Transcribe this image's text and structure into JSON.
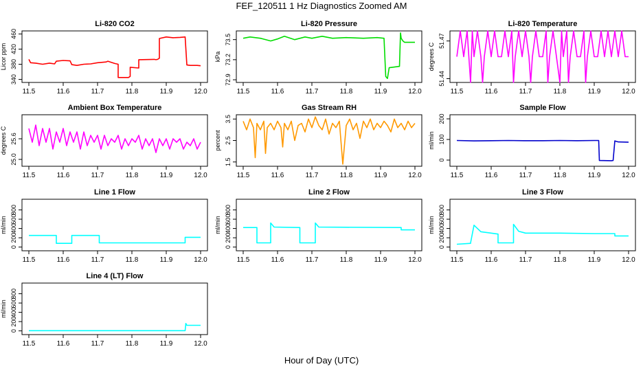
{
  "figure": {
    "title": "FEF_120511  1 Hz Diagnostics Zoomed AM",
    "xlabel": "Hour of Day (UTC)"
  },
  "chart_data": [
    {
      "type": "line",
      "title": "Li-820 CO2",
      "ylabel": "Licor ppm",
      "color": "#ff0000",
      "xlim": [
        11.48,
        12.02
      ],
      "ylim": [
        332,
        468
      ],
      "xticks": [
        11.5,
        11.6,
        11.7,
        11.8,
        11.9,
        12.0
      ],
      "xtick_labels": [
        "11.5",
        "11.6",
        "11.7",
        "11.8",
        "11.9",
        "12.0"
      ],
      "yticks": [
        340,
        380,
        420,
        460
      ],
      "ytick_labels": [
        "340",
        "380",
        "420",
        "460"
      ],
      "series": [
        {
          "x": [
            11.5,
            11.505,
            11.52,
            11.54,
            11.56,
            11.575,
            11.58,
            11.6,
            11.62,
            11.625,
            11.64,
            11.66,
            11.68,
            11.7,
            11.725,
            11.73,
            11.75,
            11.76,
            11.76,
            11.79,
            11.795,
            11.795,
            11.82,
            11.82,
            11.865,
            11.87,
            11.875,
            11.88,
            11.88,
            11.9,
            11.92,
            11.94,
            11.955,
            11.96,
            11.97,
            11.99,
            12.0
          ],
          "y": [
            393,
            384,
            383,
            380,
            383,
            381,
            388,
            390,
            389,
            379,
            377,
            380,
            381,
            384,
            386,
            388,
            382,
            380,
            345,
            345,
            348,
            372,
            370,
            392,
            393,
            392,
            393,
            396,
            448,
            452,
            450,
            451,
            452,
            378,
            377,
            377,
            376
          ]
        }
      ]
    },
    {
      "type": "line",
      "title": "Li-820 Pressure",
      "ylabel": "kPa",
      "color": "#00dd00",
      "xlim": [
        11.48,
        12.02
      ],
      "ylim": [
        72.86,
        73.63
      ],
      "xticks": [
        11.5,
        11.6,
        11.7,
        11.8,
        11.9,
        12.0
      ],
      "xtick_labels": [
        "11.5",
        "11.6",
        "11.7",
        "11.8",
        "11.9",
        "12.0"
      ],
      "yticks": [
        72.9,
        73.2,
        73.5
      ],
      "ytick_labels": [
        "72.9",
        "73.2",
        "73.5"
      ],
      "series": [
        {
          "x": [
            11.5,
            11.52,
            11.55,
            11.58,
            11.6,
            11.62,
            11.65,
            11.68,
            11.7,
            11.73,
            11.76,
            11.8,
            11.85,
            11.89,
            11.91,
            11.915,
            11.92,
            11.925,
            11.94,
            11.955,
            11.958,
            11.96,
            11.965,
            11.97,
            11.99,
            12.0
          ],
          "y": [
            73.52,
            73.54,
            73.52,
            73.48,
            73.51,
            73.55,
            73.5,
            73.54,
            73.52,
            73.55,
            73.52,
            73.53,
            73.52,
            73.53,
            73.52,
            72.95,
            72.92,
            73.08,
            73.09,
            73.1,
            73.6,
            73.52,
            73.48,
            73.46,
            73.46,
            73.46
          ]
        }
      ]
    },
    {
      "type": "line",
      "title": "Li-820 Temperature",
      "ylabel": "degrees C",
      "color": "#ff00ff",
      "xlim": [
        11.48,
        12.02
      ],
      "ylim": [
        51.437,
        51.478
      ],
      "xticks": [
        11.5,
        11.6,
        11.7,
        11.8,
        11.9,
        12.0
      ],
      "xtick_labels": [
        "11.5",
        "11.6",
        "11.7",
        "11.8",
        "11.9",
        "12.0"
      ],
      "yticks": [
        51.44,
        51.47
      ],
      "ytick_labels": [
        "51.44",
        "51.47"
      ],
      "series": [
        {
          "x": [
            11.5,
            11.51,
            11.52,
            11.53,
            11.535,
            11.54,
            11.545,
            11.55,
            11.56,
            11.57,
            11.575,
            11.58,
            11.59,
            11.6,
            11.61,
            11.62,
            11.63,
            11.64,
            11.65,
            11.66,
            11.665,
            11.67,
            11.68,
            11.69,
            11.7,
            11.71,
            11.715,
            11.72,
            11.73,
            11.74,
            11.75,
            11.76,
            11.765,
            11.77,
            11.78,
            11.79,
            11.8,
            11.805,
            11.81,
            11.82,
            11.825,
            11.83,
            11.84,
            11.85,
            11.86,
            11.87,
            11.875,
            11.88,
            11.89,
            11.9,
            11.91,
            11.92,
            11.93,
            11.94,
            11.95,
            11.96,
            11.97,
            11.98,
            11.99,
            12.0
          ],
          "y": [
            51.4575,
            51.478,
            51.4575,
            51.478,
            51.4575,
            51.437,
            51.478,
            51.4575,
            51.478,
            51.4575,
            51.437,
            51.4575,
            51.478,
            51.4575,
            51.478,
            51.4575,
            51.4575,
            51.478,
            51.4575,
            51.478,
            51.437,
            51.4575,
            51.478,
            51.4575,
            51.478,
            51.4575,
            51.437,
            51.4575,
            51.478,
            51.4575,
            51.4575,
            51.478,
            51.437,
            51.4575,
            51.478,
            51.4575,
            51.437,
            51.478,
            51.4575,
            51.478,
            51.437,
            51.4575,
            51.478,
            51.4575,
            51.4575,
            51.478,
            51.437,
            51.4575,
            51.478,
            51.4575,
            51.4575,
            51.478,
            51.4575,
            51.478,
            51.4575,
            51.478,
            51.4575,
            51.478,
            51.4575,
            51.4575
          ]
        }
      ]
    },
    {
      "type": "line",
      "title": "Ambient Box Temperature",
      "ylabel": "degrees C",
      "color": "#ff00ff",
      "xlim": [
        11.48,
        12.02
      ],
      "ylim": [
        24.8,
        26.3
      ],
      "xticks": [
        11.5,
        11.6,
        11.7,
        11.8,
        11.9,
        12.0
      ],
      "xtick_labels": [
        "11.5",
        "11.6",
        "11.7",
        "11.8",
        "11.9",
        "12.0"
      ],
      "yticks": [
        25.0,
        25.6
      ],
      "ytick_labels": [
        "25.0",
        "25.6"
      ],
      "series": [
        {
          "x": [
            11.5,
            11.51,
            11.52,
            11.53,
            11.54,
            11.55,
            11.56,
            11.57,
            11.58,
            11.59,
            11.6,
            11.61,
            11.62,
            11.63,
            11.64,
            11.65,
            11.66,
            11.67,
            11.68,
            11.69,
            11.7,
            11.71,
            11.72,
            11.73,
            11.74,
            11.75,
            11.76,
            11.77,
            11.78,
            11.79,
            11.8,
            11.81,
            11.82,
            11.83,
            11.84,
            11.85,
            11.86,
            11.87,
            11.88,
            11.89,
            11.9,
            11.91,
            11.92,
            11.93,
            11.94,
            11.95,
            11.96,
            11.97,
            11.98,
            11.99,
            12.0
          ],
          "y": [
            25.9,
            25.5,
            26.0,
            25.4,
            25.9,
            25.5,
            25.9,
            25.3,
            25.8,
            25.5,
            25.9,
            25.4,
            25.8,
            25.5,
            25.8,
            25.3,
            25.8,
            25.4,
            25.7,
            25.5,
            25.7,
            25.3,
            25.7,
            25.4,
            25.6,
            25.5,
            25.7,
            25.3,
            25.6,
            25.4,
            25.6,
            25.5,
            25.7,
            25.3,
            25.6,
            25.4,
            25.6,
            25.2,
            25.6,
            25.4,
            25.6,
            25.3,
            25.6,
            25.5,
            25.6,
            25.3,
            25.5,
            25.4,
            25.6,
            25.3,
            25.5
          ]
        }
      ]
    },
    {
      "type": "line",
      "title": "Gas Stream RH",
      "ylabel": "percent",
      "color": "#ff9900",
      "xlim": [
        11.48,
        12.02
      ],
      "ylim": [
        1.3,
        3.7
      ],
      "xticks": [
        11.5,
        11.6,
        11.7,
        11.8,
        11.9,
        12.0
      ],
      "xtick_labels": [
        "11.5",
        "11.6",
        "11.7",
        "11.8",
        "11.9",
        "12.0"
      ],
      "yticks": [
        1.5,
        2.5,
        3.5
      ],
      "ytick_labels": [
        "1.5",
        "2.5",
        "3.5"
      ],
      "series": [
        {
          "x": [
            11.5,
            11.51,
            11.52,
            11.53,
            11.535,
            11.54,
            11.55,
            11.56,
            11.565,
            11.57,
            11.58,
            11.59,
            11.6,
            11.61,
            11.615,
            11.62,
            11.63,
            11.64,
            11.65,
            11.66,
            11.67,
            11.68,
            11.69,
            11.7,
            11.71,
            11.72,
            11.73,
            11.74,
            11.75,
            11.76,
            11.77,
            11.78,
            11.79,
            11.8,
            11.81,
            11.82,
            11.83,
            11.84,
            11.85,
            11.86,
            11.87,
            11.88,
            11.89,
            11.9,
            11.91,
            11.92,
            11.93,
            11.94,
            11.95,
            11.96,
            11.97,
            11.98,
            11.99,
            12.0
          ],
          "y": [
            3.4,
            3.0,
            3.5,
            3.1,
            1.7,
            3.3,
            3.0,
            3.4,
            1.9,
            3.1,
            3.3,
            3.0,
            3.4,
            3.1,
            2.2,
            3.3,
            3.0,
            3.4,
            2.5,
            3.2,
            3.3,
            2.9,
            3.5,
            3.1,
            3.6,
            3.2,
            3.0,
            3.5,
            2.8,
            3.3,
            3.1,
            3.4,
            1.4,
            3.2,
            3.5,
            3.0,
            3.3,
            2.6,
            3.4,
            3.1,
            3.5,
            3.0,
            3.3,
            3.1,
            3.4,
            3.2,
            2.9,
            3.5,
            3.1,
            3.3,
            3.0,
            3.4,
            3.1,
            3.3
          ]
        }
      ]
    },
    {
      "type": "line",
      "title": "Sample Flow",
      "ylabel": "ml/min",
      "color": "#0000cc",
      "xlim": [
        11.48,
        12.02
      ],
      "ylim": [
        -30,
        220
      ],
      "xticks": [
        11.5,
        11.6,
        11.7,
        11.8,
        11.9,
        12.0
      ],
      "xtick_labels": [
        "11.5",
        "11.6",
        "11.7",
        "11.8",
        "11.9",
        "12.0"
      ],
      "yticks": [
        0,
        100,
        200
      ],
      "ytick_labels": [
        "0",
        "100",
        "200"
      ],
      "series": [
        {
          "x": [
            11.5,
            11.55,
            11.6,
            11.65,
            11.7,
            11.75,
            11.8,
            11.85,
            11.9,
            11.913,
            11.915,
            11.95,
            11.955,
            11.96,
            11.97,
            12.0
          ],
          "y": [
            95,
            93,
            94,
            95,
            94,
            94,
            95,
            94,
            95,
            95,
            -2,
            -3,
            -2,
            93,
            88,
            87
          ]
        }
      ]
    },
    {
      "type": "line",
      "title": "Line 1 Flow",
      "ylabel": "ml/min",
      "color": "#00ffff",
      "xlim": [
        11.48,
        12.02
      ],
      "ylim": [
        -80,
        1030
      ],
      "xticks": [
        11.5,
        11.6,
        11.7,
        11.8,
        11.9,
        12.0
      ],
      "xtick_labels": [
        "11.5",
        "11.6",
        "11.7",
        "11.8",
        "11.9",
        "12.0"
      ],
      "yticks": [
        0,
        200,
        400,
        600,
        800
      ],
      "ytick_labels": [
        "0",
        "200",
        "400",
        "600",
        "800"
      ],
      "series": [
        {
          "x": [
            11.5,
            11.58,
            11.58,
            11.625,
            11.625,
            11.705,
            11.705,
            11.955,
            11.955,
            12.0
          ],
          "y": [
            250,
            250,
            80,
            80,
            250,
            250,
            90,
            90,
            210,
            210
          ]
        }
      ]
    },
    {
      "type": "line",
      "title": "Line 2 Flow",
      "ylabel": "ml/min",
      "color": "#00ffff",
      "xlim": [
        11.48,
        12.02
      ],
      "ylim": [
        -80,
        1030
      ],
      "xticks": [
        11.5,
        11.6,
        11.7,
        11.8,
        11.9,
        12.0
      ],
      "xtick_labels": [
        "11.5",
        "11.6",
        "11.7",
        "11.8",
        "11.9",
        "12.0"
      ],
      "yticks": [
        0,
        200,
        400,
        600,
        800
      ],
      "ytick_labels": [
        "0",
        "200",
        "400",
        "600",
        "800"
      ],
      "series": [
        {
          "x": [
            11.5,
            11.54,
            11.54,
            11.58,
            11.58,
            11.59,
            11.665,
            11.665,
            11.71,
            11.71,
            11.72,
            11.96,
            11.96,
            12.0
          ],
          "y": [
            420,
            420,
            90,
            90,
            520,
            430,
            420,
            90,
            90,
            520,
            430,
            420,
            370,
            370
          ]
        }
      ]
    },
    {
      "type": "line",
      "title": "Line 3 Flow",
      "ylabel": "ml/min",
      "color": "#00ffff",
      "xlim": [
        11.48,
        12.02
      ],
      "ylim": [
        -80,
        1030
      ],
      "xticks": [
        11.5,
        11.6,
        11.7,
        11.8,
        11.9,
        12.0
      ],
      "xtick_labels": [
        "11.5",
        "11.6",
        "11.7",
        "11.8",
        "11.9",
        "12.0"
      ],
      "yticks": [
        0,
        200,
        400,
        600,
        800
      ],
      "ytick_labels": [
        "0",
        "200",
        "400",
        "600",
        "800"
      ],
      "series": [
        {
          "x": [
            11.5,
            11.54,
            11.54,
            11.55,
            11.57,
            11.6,
            11.62,
            11.62,
            11.665,
            11.665,
            11.68,
            11.7,
            11.8,
            11.9,
            11.96,
            11.96,
            12.0
          ],
          "y": [
            60,
            80,
            90,
            470,
            330,
            300,
            280,
            90,
            90,
            490,
            340,
            300,
            300,
            290,
            290,
            240,
            240
          ]
        }
      ]
    },
    {
      "type": "line",
      "title": "Line 4 (LT) Flow",
      "ylabel": "ml/min",
      "color": "#00ffff",
      "xlim": [
        11.48,
        12.02
      ],
      "ylim": [
        -80,
        1030
      ],
      "xticks": [
        11.5,
        11.6,
        11.7,
        11.8,
        11.9,
        12.0
      ],
      "xtick_labels": [
        "11.5",
        "11.6",
        "11.7",
        "11.8",
        "11.9",
        "12.0"
      ],
      "yticks": [
        0,
        200,
        400,
        600,
        800
      ],
      "ytick_labels": [
        "0",
        "200",
        "400",
        "600",
        "800"
      ],
      "series": [
        {
          "x": [
            11.5,
            11.6,
            11.7,
            11.8,
            11.9,
            11.955,
            11.957,
            11.96,
            12.0
          ],
          "y": [
            5,
            5,
            5,
            5,
            5,
            5,
            160,
            120,
            120
          ]
        }
      ]
    }
  ]
}
